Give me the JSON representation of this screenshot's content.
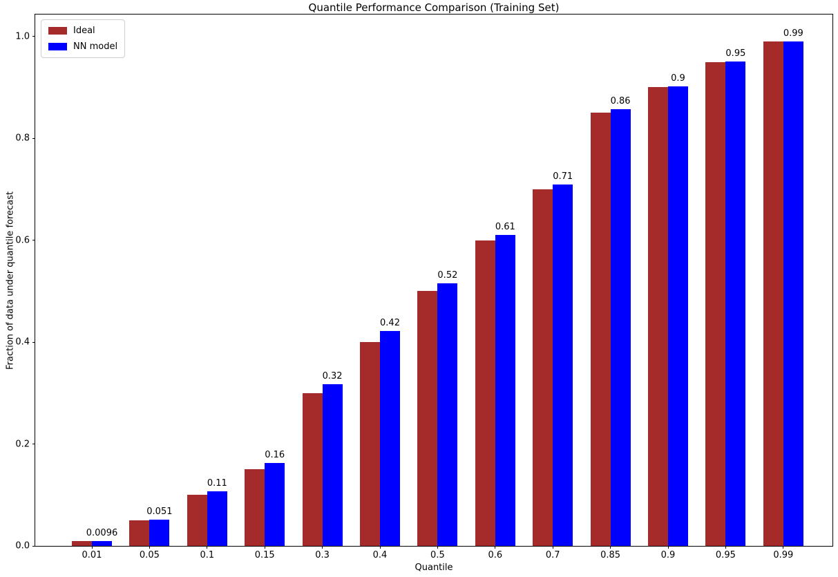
{
  "chart_data": {
    "type": "bar",
    "title": "Quantile Performance Comparison (Training Set)",
    "xlabel": "Quantile",
    "ylabel": "Fraction of data under quantile forecast",
    "categories": [
      "0.01",
      "0.05",
      "0.1",
      "0.15",
      "0.3",
      "0.4",
      "0.5",
      "0.6",
      "0.7",
      "0.85",
      "0.9",
      "0.95",
      "0.99"
    ],
    "series": [
      {
        "name": "Ideal",
        "color": "#a52a2a",
        "values": [
          0.01,
          0.05,
          0.1,
          0.15,
          0.3,
          0.4,
          0.5,
          0.6,
          0.7,
          0.85,
          0.9,
          0.95,
          0.99
        ]
      },
      {
        "name": "NN model",
        "color": "#0000ff",
        "values": [
          0.0096,
          0.051,
          0.107,
          0.163,
          0.318,
          0.422,
          0.515,
          0.611,
          0.709,
          0.857,
          0.902,
          0.951,
          0.99
        ]
      }
    ],
    "bar_value_labels": [
      "0.0096",
      "0.051",
      "0.11",
      "0.16",
      "0.32",
      "0.42",
      "0.52",
      "0.61",
      "0.71",
      "0.86",
      "0.9",
      "0.95",
      "0.99"
    ],
    "yticks": [
      "0.0",
      "0.2",
      "0.4",
      "0.6",
      "0.8",
      "1.0"
    ],
    "ylim": [
      0,
      1.043
    ],
    "grid": false,
    "legend_position": "upper left"
  }
}
